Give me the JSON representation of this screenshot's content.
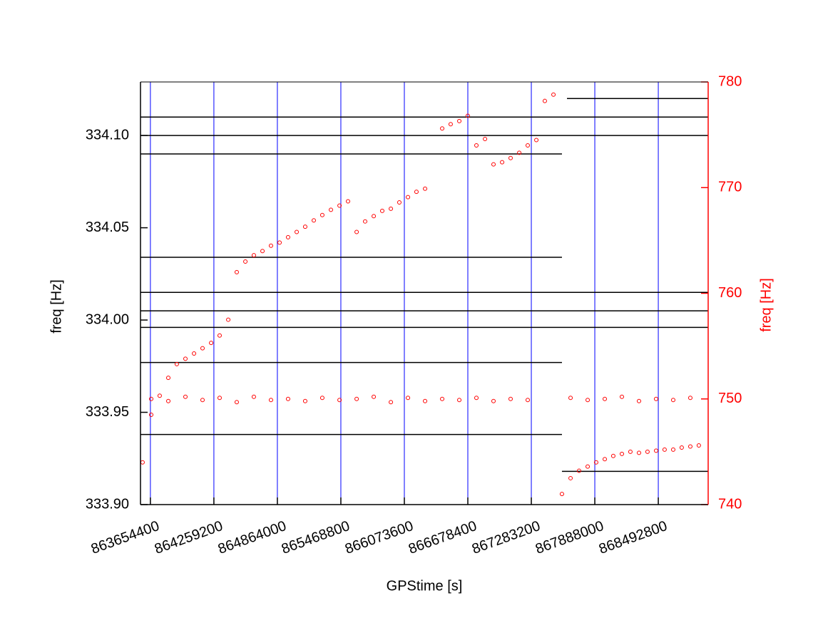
{
  "chart_data": {
    "type": "scatter",
    "xlabel": "GPStime [s]",
    "ylabel": "freq [Hz]",
    "y2label": "freq [Hz]",
    "xlim": [
      863560000,
      868968000
    ],
    "ylim": [
      333.9,
      334.129
    ],
    "y2lim": [
      740,
      780
    ],
    "xticks": [
      863654400,
      864259200,
      864864000,
      865468800,
      866073600,
      866678400,
      867283200,
      867888000,
      868492800
    ],
    "yticks": [
      {
        "value": 333.9,
        "label": "333.90"
      },
      333.95,
      {
        "value": 334.0,
        "label": "334.00"
      },
      334.05,
      {
        "value": 334.1,
        "label": "334.10"
      }
    ],
    "y2ticks": [
      740,
      750,
      760,
      770,
      780
    ],
    "grid": true,
    "grid_color": "#0000ff",
    "series": [
      {
        "mode": "line",
        "color": "#000000",
        "x": [
          863560000,
          868968000
        ],
        "values": [
          334.11,
          334.11
        ]
      },
      {
        "mode": "line",
        "color": "#000000",
        "x": [
          863560000,
          868968000
        ],
        "values": [
          334.1,
          334.1
        ]
      },
      {
        "mode": "line",
        "color": "#000000",
        "x": [
          863560000,
          867575000
        ],
        "values": [
          334.09,
          334.09
        ]
      },
      {
        "mode": "line",
        "color": "#000000",
        "x": [
          867623000,
          868968000
        ],
        "values": [
          334.12,
          334.12
        ]
      },
      {
        "mode": "line",
        "color": "#000000",
        "x": [
          863560000,
          867575000
        ],
        "values": [
          334.034,
          334.034
        ]
      },
      {
        "mode": "line",
        "color": "#000000",
        "x": [
          863560000,
          868968000
        ],
        "values": [
          334.015,
          334.015
        ]
      },
      {
        "mode": "line",
        "color": "#000000",
        "x": [
          863560000,
          868968000
        ],
        "values": [
          334.005,
          334.005
        ]
      },
      {
        "mode": "line",
        "color": "#000000",
        "x": [
          863560000,
          868968000
        ],
        "values": [
          333.996,
          333.996
        ]
      },
      {
        "mode": "line",
        "color": "#000000",
        "x": [
          863560000,
          867575000
        ],
        "values": [
          333.977,
          333.977
        ]
      },
      {
        "mode": "line",
        "color": "#000000",
        "x": [
          863560000,
          867575000
        ],
        "values": [
          333.938,
          333.938
        ]
      },
      {
        "mode": "line",
        "color": "#000000",
        "x": [
          867575000,
          868968000
        ],
        "values": [
          333.918,
          333.918
        ]
      },
      {
        "mode": "markers",
        "axis": "y2",
        "color": "#ff0000",
        "x": [
          863580000,
          863662000,
          863743000,
          863825000,
          863906000,
          863988000,
          864070000,
          864151000,
          864233000,
          864314000,
          864396000,
          864477000,
          864559000,
          864640000,
          864722000,
          864803000,
          864885000,
          864966000,
          865048000,
          865129000,
          865211000,
          865292000,
          865374000,
          865456000,
          865537000,
          865619000,
          865700000,
          865782000,
          865863000,
          865945000,
          866026000,
          866108000,
          866189000,
          866271000,
          866434000,
          866515000,
          866597000,
          866678000,
          866760000,
          866842000,
          866923000,
          867005000,
          867086000,
          867168000,
          867249000,
          867331000,
          867412000,
          867494000,
          867575000,
          867657000,
          867738000,
          867820000,
          867901000,
          867983000,
          868064000,
          868146000,
          868227000,
          868309000,
          868390000,
          868472000,
          868553000,
          868635000,
          868716000,
          868798000,
          868879000
        ],
        "values": [
          744.0,
          748.5,
          750.3,
          752.0,
          753.3,
          753.8,
          754.3,
          754.8,
          755.3,
          756.0,
          757.5,
          762.0,
          763.0,
          763.6,
          764.0,
          764.5,
          764.8,
          765.3,
          765.8,
          766.3,
          766.9,
          767.4,
          767.9,
          768.3,
          768.7,
          765.8,
          766.8,
          767.3,
          767.8,
          768.0,
          768.6,
          769.1,
          769.6,
          769.9,
          775.6,
          776.0,
          776.3,
          776.8,
          774.0,
          774.6,
          772.2,
          772.4,
          772.8,
          773.3,
          774.0,
          774.5,
          778.2,
          778.8,
          741.0,
          742.5,
          743.2,
          743.6,
          744.0,
          744.3,
          744.6,
          744.8,
          745.0,
          744.9,
          745.0,
          745.1,
          745.2,
          745.2,
          745.4,
          745.5,
          745.6
        ]
      },
      {
        "mode": "markers",
        "axis": "y2",
        "color": "#ff0000",
        "x": [
          863662000,
          863825000,
          863988000,
          864151000,
          864314000,
          864477000,
          864640000,
          864803000,
          864966000,
          865129000,
          865292000,
          865456000,
          865619000,
          865782000,
          865945000,
          866108000,
          866271000,
          866434000,
          866597000,
          866760000,
          866923000,
          867086000,
          867249000,
          867657000,
          867820000,
          867983000,
          868146000,
          868309000,
          868472000,
          868635000,
          868798000
        ],
        "values": [
          750.0,
          749.8,
          750.2,
          749.9,
          750.1,
          749.7,
          750.2,
          749.9,
          750.0,
          749.8,
          750.1,
          749.9,
          750.0,
          750.2,
          749.7,
          750.1,
          749.8,
          750.0,
          749.9,
          750.1,
          749.8,
          750.0,
          749.9,
          750.1,
          749.9,
          750.0,
          750.2,
          749.8,
          750.0,
          749.9,
          750.1
        ]
      }
    ]
  }
}
